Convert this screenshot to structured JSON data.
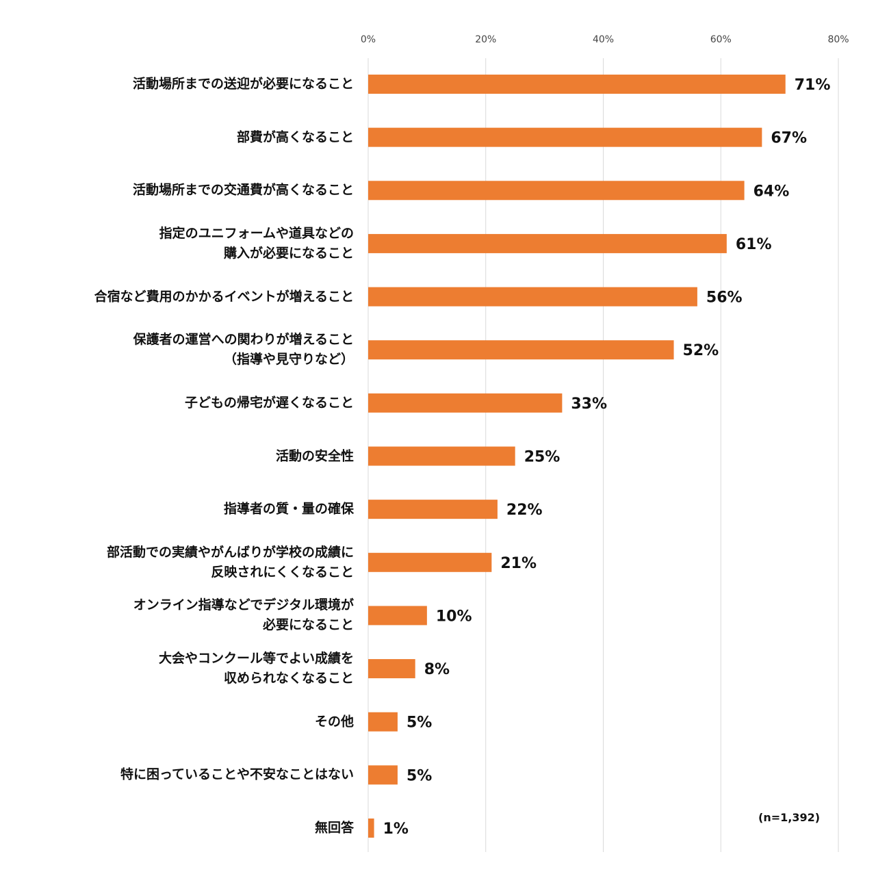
{
  "chart_data": {
    "type": "bar",
    "orientation": "horizontal",
    "categories": [
      "活動場所までの送迎が必要になること",
      "部費が高くなること",
      "活動場所までの交通費が高くなること",
      "指定のユニフォームや道具などの\n購入が必要になること",
      "合宿など費用のかかるイベントが増えること",
      "保護者の運営への関わりが増えること\n（指導や見守りなど）",
      "子どもの帰宅が遅くなること",
      "活動の安全性",
      "指導者の質・量の確保",
      "部活動での実績やがんばりが学校の成績に\n反映されにくくなること",
      "オンライン指導などでデジタル環境が\n必要になること",
      "大会やコンクール等でよい成績を\n収められなくなること",
      "その他",
      "特に困っていることや不安なことはない",
      "無回答"
    ],
    "values": [
      71,
      67,
      64,
      61,
      56,
      52,
      33,
      25,
      22,
      21,
      10,
      8,
      5,
      5,
      1
    ],
    "value_labels": [
      "71%",
      "67%",
      "64%",
      "61%",
      "56%",
      "52%",
      "33%",
      "25%",
      "22%",
      "21%",
      "10%",
      "8%",
      "5%",
      "5%",
      "1%"
    ],
    "color": "#ed7d31",
    "xlim": [
      0,
      80
    ],
    "xticks": [
      {
        "value": 0,
        "label": "0%"
      },
      {
        "value": 20,
        "label": "20%"
      },
      {
        "value": 40,
        "label": "40%"
      },
      {
        "value": 60,
        "label": "60%"
      },
      {
        "value": 80,
        "label": "80%"
      }
    ],
    "grid": true,
    "annotation": "(n=1,392)"
  }
}
